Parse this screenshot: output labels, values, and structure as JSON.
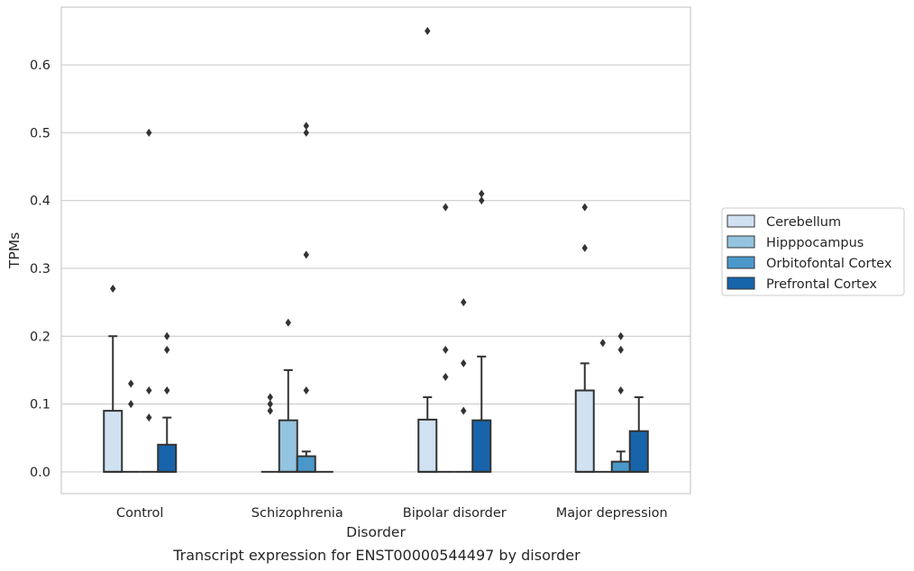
{
  "chart_data": {
    "type": "box",
    "xlabel": "Disorder",
    "ylabel": "TPMs",
    "caption": "Transcript expression for ENST00000544497 by disorder",
    "categories": [
      "Control",
      "Schizophrenia",
      "Bipolar disorder",
      "Major depression"
    ],
    "yticks": [
      0.0,
      0.1,
      0.2,
      0.3,
      0.4,
      0.5,
      0.6
    ],
    "ytick_labels": [
      "0.0",
      "0.1",
      "0.2",
      "0.3",
      "0.4",
      "0.5",
      "0.6"
    ],
    "ylim": [
      -0.032,
      0.685
    ],
    "grid": "horizontal",
    "legend_position": "right",
    "series": [
      {
        "name": "Cerebellum",
        "color": "#d0e1f2",
        "boxes": [
          {
            "q1": 0,
            "median": 0,
            "q3": 0.09,
            "whisker_low": 0,
            "whisker_high": 0.2,
            "outliers": [
              0.27
            ]
          },
          {
            "q1": 0,
            "median": 0,
            "q3": 0,
            "whisker_low": 0,
            "whisker_high": 0,
            "outliers": [
              0.09,
              0.1,
              0.11
            ]
          },
          {
            "q1": 0,
            "median": 0,
            "q3": 0.077,
            "whisker_low": 0,
            "whisker_high": 0.11,
            "outliers": [
              0.65
            ]
          },
          {
            "q1": 0,
            "median": 0,
            "q3": 0.12,
            "whisker_low": 0,
            "whisker_high": 0.16,
            "outliers": [
              0.33,
              0.39
            ]
          }
        ]
      },
      {
        "name": "Hipppocampus",
        "color": "#94c4df",
        "boxes": [
          {
            "q1": 0,
            "median": 0,
            "q3": 0,
            "whisker_low": 0,
            "whisker_high": 0,
            "outliers": [
              0.1,
              0.13
            ]
          },
          {
            "q1": 0,
            "median": 0,
            "q3": 0.076,
            "whisker_low": 0,
            "whisker_high": 0.15,
            "outliers": [
              0.22
            ]
          },
          {
            "q1": 0,
            "median": 0,
            "q3": 0,
            "whisker_low": 0,
            "whisker_high": 0,
            "outliers": [
              0.14,
              0.18,
              0.39
            ]
          },
          {
            "q1": 0,
            "median": 0,
            "q3": 0,
            "whisker_low": 0,
            "whisker_high": 0,
            "outliers": [
              0.19
            ]
          }
        ]
      },
      {
        "name": "Orbitofontal Cortex",
        "color": "#4a98c9",
        "boxes": [
          {
            "q1": 0,
            "median": 0,
            "q3": 0,
            "whisker_low": 0,
            "whisker_high": 0,
            "outliers": [
              0.08,
              0.12,
              0.5
            ]
          },
          {
            "q1": 0,
            "median": 0,
            "q3": 0.023,
            "whisker_low": 0,
            "whisker_high": 0.03,
            "outliers": [
              0.12,
              0.32,
              0.5,
              0.51
            ]
          },
          {
            "q1": 0,
            "median": 0,
            "q3": 0,
            "whisker_low": 0,
            "whisker_high": 0,
            "outliers": [
              0.09,
              0.16,
              0.25
            ]
          },
          {
            "q1": 0,
            "median": 0,
            "q3": 0.015,
            "whisker_low": 0,
            "whisker_high": 0.03,
            "outliers": [
              0.12,
              0.18,
              0.2
            ]
          }
        ]
      },
      {
        "name": "Prefrontal Cortex",
        "color": "#1764ab",
        "boxes": [
          {
            "q1": 0,
            "median": 0,
            "q3": 0.04,
            "whisker_low": 0,
            "whisker_high": 0.08,
            "outliers": [
              0.12,
              0.18,
              0.2
            ]
          },
          {
            "q1": 0,
            "median": 0,
            "q3": 0,
            "whisker_low": 0,
            "whisker_high": 0,
            "outliers": []
          },
          {
            "q1": 0,
            "median": 0,
            "q3": 0.076,
            "whisker_low": 0,
            "whisker_high": 0.17,
            "outliers": [
              0.4,
              0.41
            ]
          },
          {
            "q1": 0,
            "median": 0,
            "q3": 0.06,
            "whisker_low": 0,
            "whisker_high": 0.11,
            "outliers": []
          }
        ]
      }
    ]
  }
}
